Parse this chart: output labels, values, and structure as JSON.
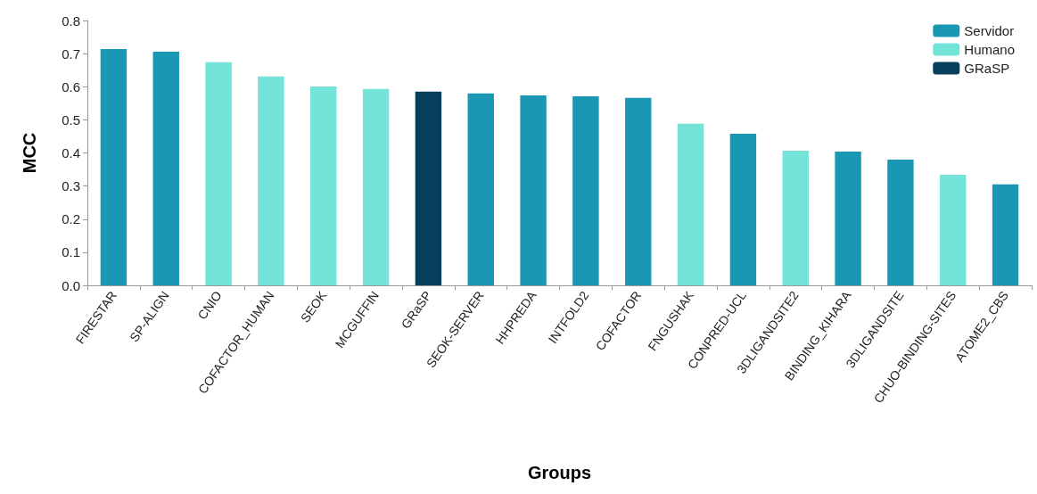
{
  "chart_data": {
    "type": "bar",
    "xlabel": "Groups",
    "ylabel": "MCC",
    "categories": [
      "FIRESTAR",
      "SP-ALIGN",
      "CNIO",
      "COFACTOR_HUMAN",
      "SEOK",
      "MCGUFFIN",
      "GRaSP",
      "SEOK-SERVER",
      "HHPREDA",
      "INTFOLD2",
      "COFACTOR",
      "FNGUSHAK",
      "CONPRED-UCL",
      "3DLIGANDSITE2",
      "BINDING_KIHARA",
      "3DLIGANDSITE",
      "CHUO-BINDING-SITES",
      "ATOME2_CBS"
    ],
    "series": [
      {
        "name": "Servidor",
        "color": "#1a98b3",
        "values": [
          0.714,
          0.706,
          null,
          null,
          null,
          null,
          null,
          0.58,
          0.574,
          0.571,
          0.566,
          null,
          0.458,
          null,
          0.404,
          0.38,
          null,
          0.305
        ]
      },
      {
        "name": "Humano",
        "color": "#74e4d9",
        "values": [
          null,
          null,
          0.674,
          0.631,
          0.601,
          0.593,
          null,
          null,
          null,
          null,
          null,
          0.488,
          null,
          0.407,
          null,
          null,
          0.334,
          null
        ]
      },
      {
        "name": "GRaSP",
        "color": "#053f5b",
        "values": [
          null,
          null,
          null,
          null,
          null,
          null,
          0.585,
          null,
          null,
          null,
          null,
          null,
          null,
          null,
          null,
          null,
          null,
          null
        ]
      }
    ],
    "stacked": true,
    "ylim": [
      0,
      0.8
    ],
    "yticks": [
      {
        "value": 0,
        "label": "0.0"
      },
      0.1,
      0.2,
      0.3,
      0.4,
      0.5,
      0.6,
      0.7,
      0.8
    ],
    "grid": false,
    "legend": "top right"
  }
}
